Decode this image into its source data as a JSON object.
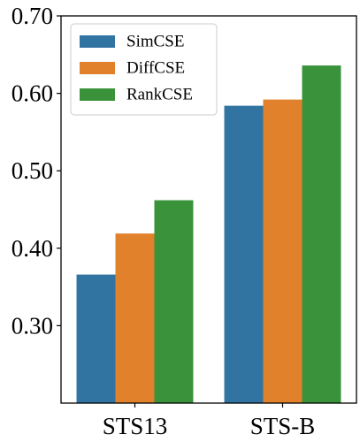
{
  "chart_data": {
    "type": "bar",
    "categories": [
      "STS13",
      "STS-B"
    ],
    "series": [
      {
        "name": "SimCSE",
        "values": [
          0.366,
          0.584
        ],
        "color": "#3274a1"
      },
      {
        "name": "DiffCSE",
        "values": [
          0.419,
          0.592
        ],
        "color": "#e1812c"
      },
      {
        "name": "RankCSE",
        "values": [
          0.462,
          0.636
        ],
        "color": "#3a923a"
      }
    ],
    "yticks": [
      "0.30",
      "0.40",
      "0.50",
      "0.60",
      "0.70"
    ],
    "ytick_values": [
      0.3,
      0.4,
      0.5,
      0.6,
      0.7
    ],
    "ylim": [
      0.2,
      0.7
    ],
    "title": "",
    "xlabel": "",
    "ylabel": "",
    "grid": false,
    "legend_position": "top-left"
  }
}
